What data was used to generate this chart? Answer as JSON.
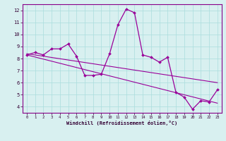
{
  "xlabel": "Windchill (Refroidissement éolien,°C)",
  "line1_x": [
    0,
    1,
    2,
    3,
    4,
    5,
    6,
    7,
    8,
    9,
    10,
    11,
    12,
    13,
    14,
    15,
    16,
    17,
    18,
    19,
    20,
    21,
    22,
    23
  ],
  "line1_y": [
    8.3,
    8.5,
    8.3,
    8.8,
    8.8,
    9.2,
    8.2,
    6.6,
    6.6,
    6.7,
    8.4,
    10.8,
    12.1,
    11.8,
    8.3,
    8.1,
    7.7,
    8.1,
    5.2,
    4.8,
    3.8,
    4.5,
    4.4,
    5.4
  ],
  "trend1_x": [
    0,
    23
  ],
  "trend1_y": [
    8.4,
    6.0
  ],
  "trend2_x": [
    0,
    23
  ],
  "trend2_y": [
    8.3,
    4.3
  ],
  "line_color": "#990099",
  "bg_color": "#d8f0f0",
  "grid_color": "#aadddd",
  "xlim": [
    -0.5,
    23.5
  ],
  "ylim": [
    3.5,
    12.5
  ],
  "yticks": [
    4,
    5,
    6,
    7,
    8,
    9,
    10,
    11,
    12
  ],
  "xticks": [
    0,
    1,
    2,
    3,
    4,
    5,
    6,
    7,
    8,
    9,
    10,
    11,
    12,
    13,
    14,
    15,
    16,
    17,
    18,
    19,
    20,
    21,
    22,
    23
  ]
}
